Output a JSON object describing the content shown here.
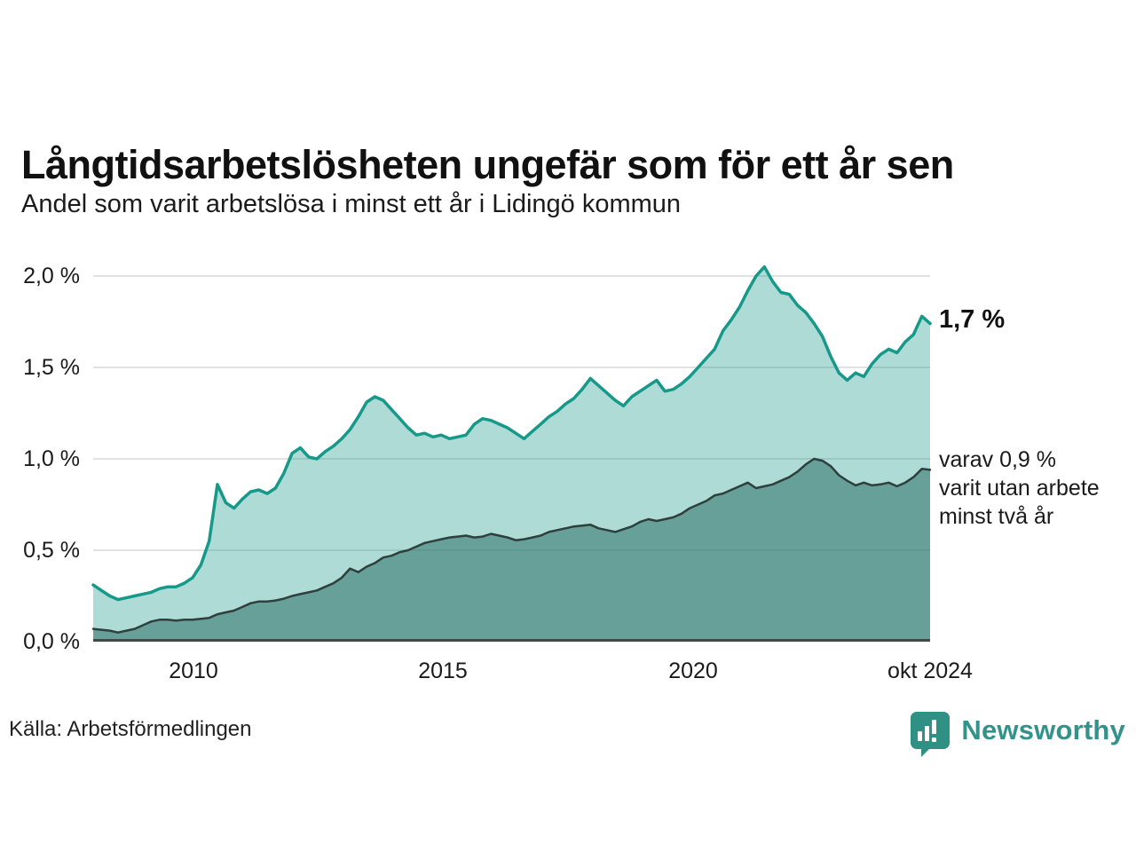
{
  "header": {
    "title": "Långtidsarbetslösheten ungefär som för ett år sen",
    "subtitle": "Andel som varit arbetslösa i minst ett år i Lidingö kommun"
  },
  "annotations": {
    "latest": {
      "label": "1,7 %"
    },
    "two_years": {
      "lines": [
        "varav 0,9 %",
        "varit utan arbete",
        "minst två år"
      ]
    }
  },
  "footer": {
    "source": "Källa: Arbetsförmedlingen",
    "brand": "Newsworthy"
  },
  "colors": {
    "accent_line": "#17998a",
    "accent_fill": "rgba(24,153,138,0.35)",
    "dark_line": "#2e403d",
    "dark_fill": "rgba(60,125,115,0.62)",
    "gridline": "#e2e2e2",
    "axis_line": "#3d4a48",
    "brand_teal": "#33938a"
  },
  "chart_data": {
    "type": "area",
    "title": "Långtidsarbetslösheten ungefär som för ett år sen",
    "subtitle": "Andel som varit arbetslösa i minst ett år i Lidingö kommun",
    "xlabel": "",
    "ylabel": "",
    "x_start": 2008.0,
    "x_end": 2024.75,
    "x_end_label": "okt 2024",
    "ylim": [
      0,
      2.0
    ],
    "grid": true,
    "y_ticks": [
      {
        "value": 0.0,
        "label": "0,0 %"
      },
      {
        "value": 0.5,
        "label": "0,5 %"
      },
      {
        "value": 1.0,
        "label": "1,0 %"
      },
      {
        "value": 1.5,
        "label": "1,5 %"
      },
      {
        "value": 2.0,
        "label": "2,0 %"
      }
    ],
    "x_ticks": [
      {
        "value": 2010,
        "label": "2010"
      },
      {
        "value": 2015,
        "label": "2015"
      },
      {
        "value": 2020,
        "label": "2020"
      },
      {
        "value": 2024.75,
        "label": "okt 2024"
      }
    ],
    "series": [
      {
        "name": "Andel arbetslösa minst ett år",
        "end_label": "1,7 %",
        "end_value": 1.7,
        "values": [
          0.31,
          0.28,
          0.25,
          0.23,
          0.24,
          0.25,
          0.26,
          0.27,
          0.29,
          0.3,
          0.3,
          0.32,
          0.35,
          0.42,
          0.55,
          0.86,
          0.76,
          0.73,
          0.78,
          0.82,
          0.83,
          0.81,
          0.84,
          0.92,
          1.03,
          1.06,
          1.01,
          1.0,
          1.04,
          1.07,
          1.11,
          1.16,
          1.23,
          1.31,
          1.34,
          1.32,
          1.27,
          1.22,
          1.17,
          1.13,
          1.14,
          1.12,
          1.13,
          1.11,
          1.12,
          1.13,
          1.19,
          1.22,
          1.21,
          1.19,
          1.17,
          1.14,
          1.11,
          1.15,
          1.19,
          1.23,
          1.26,
          1.3,
          1.33,
          1.38,
          1.44,
          1.4,
          1.36,
          1.32,
          1.29,
          1.34,
          1.37,
          1.4,
          1.43,
          1.37,
          1.38,
          1.41,
          1.45,
          1.5,
          1.55,
          1.6,
          1.7,
          1.76,
          1.83,
          1.92,
          2.0,
          2.05,
          1.97,
          1.91,
          1.9,
          1.84,
          1.8,
          1.74,
          1.67,
          1.56,
          1.47,
          1.43,
          1.47,
          1.45,
          1.52,
          1.57,
          1.6,
          1.58,
          1.64,
          1.68,
          1.78,
          1.74
        ]
      },
      {
        "name": "varav utan arbete minst två år",
        "end_label": "0,9 %",
        "end_value": 0.9,
        "values": [
          0.07,
          0.065,
          0.06,
          0.05,
          0.06,
          0.07,
          0.09,
          0.11,
          0.12,
          0.12,
          0.115,
          0.12,
          0.12,
          0.125,
          0.13,
          0.15,
          0.16,
          0.17,
          0.19,
          0.21,
          0.22,
          0.22,
          0.225,
          0.235,
          0.25,
          0.26,
          0.27,
          0.28,
          0.3,
          0.32,
          0.35,
          0.4,
          0.38,
          0.41,
          0.43,
          0.46,
          0.47,
          0.49,
          0.5,
          0.52,
          0.54,
          0.55,
          0.56,
          0.57,
          0.575,
          0.58,
          0.57,
          0.575,
          0.59,
          0.58,
          0.57,
          0.555,
          0.56,
          0.57,
          0.58,
          0.6,
          0.61,
          0.62,
          0.63,
          0.635,
          0.64,
          0.62,
          0.61,
          0.6,
          0.615,
          0.63,
          0.655,
          0.67,
          0.66,
          0.67,
          0.68,
          0.7,
          0.73,
          0.75,
          0.77,
          0.8,
          0.81,
          0.83,
          0.85,
          0.87,
          0.84,
          0.85,
          0.86,
          0.88,
          0.9,
          0.93,
          0.97,
          1.0,
          0.99,
          0.96,
          0.91,
          0.88,
          0.855,
          0.87,
          0.855,
          0.86,
          0.87,
          0.85,
          0.87,
          0.9,
          0.945,
          0.94
        ]
      }
    ],
    "legend": "none",
    "source": "Källa: Arbetsförmedlingen"
  }
}
